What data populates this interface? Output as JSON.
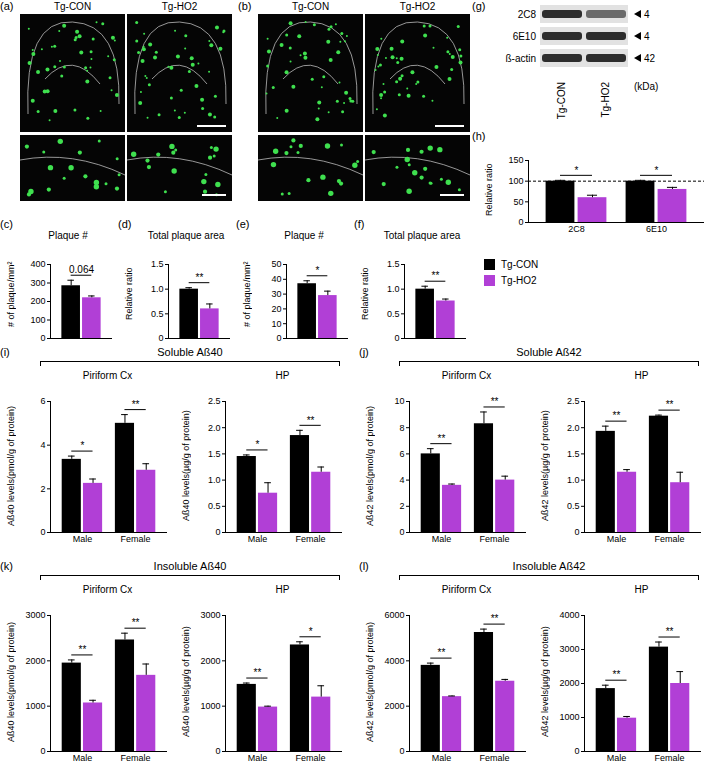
{
  "images": [
    {
      "panel": "(a)",
      "labels": [
        "Tg-CON",
        "Tg-HO2"
      ]
    },
    {
      "panel": "(b)",
      "labels": [
        "Tg-CON",
        "Tg-HO2"
      ]
    }
  ],
  "blot": {
    "panel": "(g)",
    "rows": [
      {
        "name": "2C8",
        "size": 4
      },
      {
        "name": "6E10",
        "size": 4
      },
      {
        "name": "ß-actin",
        "size": 42
      }
    ],
    "unit": "(kDa)",
    "lanes": [
      "Tg-CON",
      "Tg-HO2"
    ]
  },
  "key": [
    {
      "name": "Tg-CON",
      "color": "#000000"
    },
    {
      "name": "Tg-HO2",
      "color": "#b13fd6"
    }
  ],
  "groups": [
    {
      "panel": "(i)",
      "title": "Soluble Aß40"
    },
    {
      "panel": "(j)",
      "title": "Soluble Aß42"
    },
    {
      "panel": "(k)",
      "title": "Insoluble Aß40"
    },
    {
      "panel": "(l)",
      "title": "Insoluble Aß42"
    }
  ],
  "chart_data": [
    {
      "type": "bar",
      "panel": "(c)",
      "title": "Plaque #",
      "ylabel": "# of plaque /mm²",
      "categories": [
        null
      ],
      "series": [
        {
          "name": "Tg-CON",
          "color": "#000000",
          "values": [
            285
          ],
          "errors": [
            30
          ]
        },
        {
          "name": "Tg-HO2",
          "color": "#b13fd6",
          "values": [
            220
          ],
          "errors": [
            10
          ]
        }
      ],
      "ylim": [
        0,
        400
      ],
      "yticks": [
        0,
        100,
        200,
        300,
        400
      ],
      "annotations": [
        "0.064"
      ],
      "tick_labels": "y"
    },
    {
      "type": "bar",
      "panel": "(d)",
      "title": "Total plaque area",
      "ylabel": "Relative ratio",
      "categories": [
        null
      ],
      "series": [
        {
          "name": "Tg-CON",
          "color": "#000000",
          "values": [
            1.0
          ],
          "errors": [
            0.03
          ]
        },
        {
          "name": "Tg-HO2",
          "color": "#b13fd6",
          "values": [
            0.6
          ],
          "errors": [
            0.1
          ]
        }
      ],
      "ylim": [
        0,
        1.5
      ],
      "yticks": [
        0,
        0.5,
        {
          "value": 1,
          "label": "1.0"
        },
        1.5
      ],
      "annotations": [
        "**"
      ],
      "tick_labels": "y"
    },
    {
      "type": "bar",
      "panel": "(e)",
      "title": "Plaque #",
      "ylabel": "# of plaque /mm²",
      "categories": [
        null
      ],
      "series": [
        {
          "name": "Tg-CON",
          "color": "#000000",
          "values": [
            37
          ],
          "errors": [
            2
          ]
        },
        {
          "name": "Tg-HO2",
          "color": "#b13fd6",
          "values": [
            29
          ],
          "errors": [
            3
          ]
        }
      ],
      "ylim": [
        0,
        50
      ],
      "yticks": [
        0,
        10,
        20,
        30,
        40,
        50
      ],
      "annotations": [
        "*"
      ],
      "tick_labels": "y"
    },
    {
      "type": "bar",
      "panel": "(f)",
      "title": "Total plaque area",
      "ylabel": "Relative ratio",
      "categories": [
        null
      ],
      "series": [
        {
          "name": "Tg-CON",
          "color": "#000000",
          "values": [
            1.0
          ],
          "errors": [
            0.06
          ]
        },
        {
          "name": "Tg-HO2",
          "color": "#b13fd6",
          "values": [
            0.76
          ],
          "errors": [
            0.04
          ]
        }
      ],
      "ylim": [
        0,
        1.5
      ],
      "yticks": [
        0,
        0.5,
        {
          "value": 1,
          "label": "1.0"
        },
        1.5
      ],
      "annotations": [
        "**"
      ],
      "tick_labels": "y"
    },
    {
      "type": "bar",
      "panel": "(h)",
      "ylabel": "Relative ratio",
      "categories": [
        "2C8",
        "6E10"
      ],
      "series": [
        {
          "name": "Tg-CON",
          "color": "#000000",
          "values": [
            100,
            100
          ],
          "errors": [
            2,
            2
          ]
        },
        {
          "name": "Tg-HO2",
          "color": "#b13fd6",
          "values": [
            60,
            80
          ],
          "errors": [
            6,
            5
          ]
        }
      ],
      "ylim": [
        0,
        150
      ],
      "yticks": [
        0,
        50,
        100,
        150
      ],
      "reference_line": 100,
      "annotations": [
        "*",
        "*"
      ]
    },
    {
      "type": "bar",
      "title": "Piriform Cx",
      "ylabel": "Aß40 levels (pmol/g of protein)",
      "categories": [
        "Male",
        "Female"
      ],
      "series": [
        {
          "name": "Tg-CON",
          "color": "#000000",
          "values": [
            3.35,
            5.0
          ],
          "errors": [
            0.15,
            0.4
          ]
        },
        {
          "name": "Tg-HO2",
          "color": "#b13fd6",
          "values": [
            2.25,
            2.85
          ],
          "errors": [
            0.2,
            0.3
          ]
        }
      ],
      "ylim": [
        0,
        6
      ],
      "yticks": [
        0,
        2,
        4,
        6
      ],
      "annotations": [
        "*",
        "**"
      ]
    },
    {
      "type": "bar",
      "title": "HP",
      "ylabel": "Aß40 levels (µg/g of protein)",
      "categories": [
        "Male",
        "Female"
      ],
      "series": [
        {
          "name": "Tg-CON",
          "color": "#000000",
          "values": [
            1.45,
            1.85
          ],
          "errors": [
            0.03,
            0.1
          ]
        },
        {
          "name": "Tg-HO2",
          "color": "#b13fd6",
          "values": [
            0.75,
            1.15
          ],
          "errors": [
            0.2,
            0.1
          ]
        }
      ],
      "ylim": [
        0,
        2.5
      ],
      "yticks": [
        0,
        0.5,
        {
          "value": 1,
          "label": "1.0"
        },
        1.5,
        {
          "value": 2,
          "label": "2.0"
        },
        2.5
      ],
      "annotations": [
        "*",
        "**"
      ]
    },
    {
      "type": "bar",
      "title": "Piriform Cx",
      "ylabel": "Aß42 levels (pmol/g of protein)",
      "categories": [
        "Male",
        "Female"
      ],
      "series": [
        {
          "name": "Tg-CON",
          "color": "#000000",
          "values": [
            6.0,
            8.3
          ],
          "errors": [
            0.4,
            0.9
          ]
        },
        {
          "name": "Tg-HO2",
          "color": "#b13fd6",
          "values": [
            3.6,
            4.0
          ],
          "errors": [
            0.1,
            0.3
          ]
        }
      ],
      "ylim": [
        0,
        10
      ],
      "yticks": [
        0,
        2,
        4,
        6,
        8,
        10
      ],
      "annotations": [
        "**",
        "**"
      ]
    },
    {
      "type": "bar",
      "title": "HP",
      "ylabel": "Aß42 levels (µg/g of protein)",
      "categories": [
        "Male",
        "Female"
      ],
      "series": [
        {
          "name": "Tg-CON",
          "color": "#000000",
          "values": [
            1.93,
            2.22
          ],
          "errors": [
            0.1,
            0.02
          ]
        },
        {
          "name": "Tg-HO2",
          "color": "#b13fd6",
          "values": [
            1.15,
            0.95
          ],
          "errors": [
            0.05,
            0.2
          ]
        }
      ],
      "ylim": [
        0,
        2.5
      ],
      "yticks": [
        0,
        0.5,
        {
          "value": 1,
          "label": "1.0"
        },
        1.5,
        {
          "value": 2,
          "label": "2.0"
        },
        2.5
      ],
      "annotations": [
        "**",
        "**"
      ]
    },
    {
      "type": "bar",
      "title": "Piriform Cx",
      "ylabel": "Aß40 levels (pmol/g of protein)",
      "categories": [
        "Male",
        "Female"
      ],
      "series": [
        {
          "name": "Tg-CON",
          "color": "#000000",
          "values": [
            1950,
            2460
          ],
          "errors": [
            70,
            150
          ]
        },
        {
          "name": "Tg-HO2",
          "color": "#b13fd6",
          "values": [
            1070,
            1680
          ],
          "errors": [
            60,
            250
          ]
        }
      ],
      "ylim": [
        0,
        3000
      ],
      "yticks": [
        0,
        1000,
        2000,
        3000
      ],
      "annotations": [
        "**",
        "**"
      ]
    },
    {
      "type": "bar",
      "title": "HP",
      "ylabel": "Aß40 levels (µg/g of protein)",
      "categories": [
        "Male",
        "Female"
      ],
      "series": [
        {
          "name": "Tg-CON",
          "color": "#000000",
          "values": [
            1480,
            2350
          ],
          "errors": [
            30,
            70
          ]
        },
        {
          "name": "Tg-HO2",
          "color": "#b13fd6",
          "values": [
            980,
            1200
          ],
          "errors": [
            20,
            250
          ]
        }
      ],
      "ylim": [
        0,
        3000
      ],
      "yticks": [
        0,
        1000,
        2000,
        3000
      ],
      "annotations": [
        "**",
        "*"
      ]
    },
    {
      "type": "bar",
      "title": "Piriform Cx",
      "ylabel": "Aß42 levels (pmol/g of protein)",
      "categories": [
        "Male",
        "Female"
      ],
      "series": [
        {
          "name": "Tg-CON",
          "color": "#000000",
          "values": [
            3800,
            5250
          ],
          "errors": [
            100,
            150
          ]
        },
        {
          "name": "Tg-HO2",
          "color": "#b13fd6",
          "values": [
            2420,
            3100
          ],
          "errors": [
            30,
            80
          ]
        }
      ],
      "ylim": [
        0,
        6000
      ],
      "yticks": [
        0,
        2000,
        4000,
        6000
      ],
      "annotations": [
        "**",
        "**"
      ]
    },
    {
      "type": "bar",
      "title": "HP",
      "ylabel": "Aß42 levels (µg/g of protein)",
      "categories": [
        "Male",
        "Female"
      ],
      "series": [
        {
          "name": "Tg-CON",
          "color": "#000000",
          "values": [
            1850,
            3070
          ],
          "errors": [
            100,
            150
          ]
        },
        {
          "name": "Tg-HO2",
          "color": "#b13fd6",
          "values": [
            980,
            2000
          ],
          "errors": [
            50,
            350
          ]
        }
      ],
      "ylim": [
        0,
        4000
      ],
      "yticks": [
        0,
        1000,
        2000,
        3000,
        4000
      ],
      "annotations": [
        "**",
        "**"
      ]
    }
  ]
}
